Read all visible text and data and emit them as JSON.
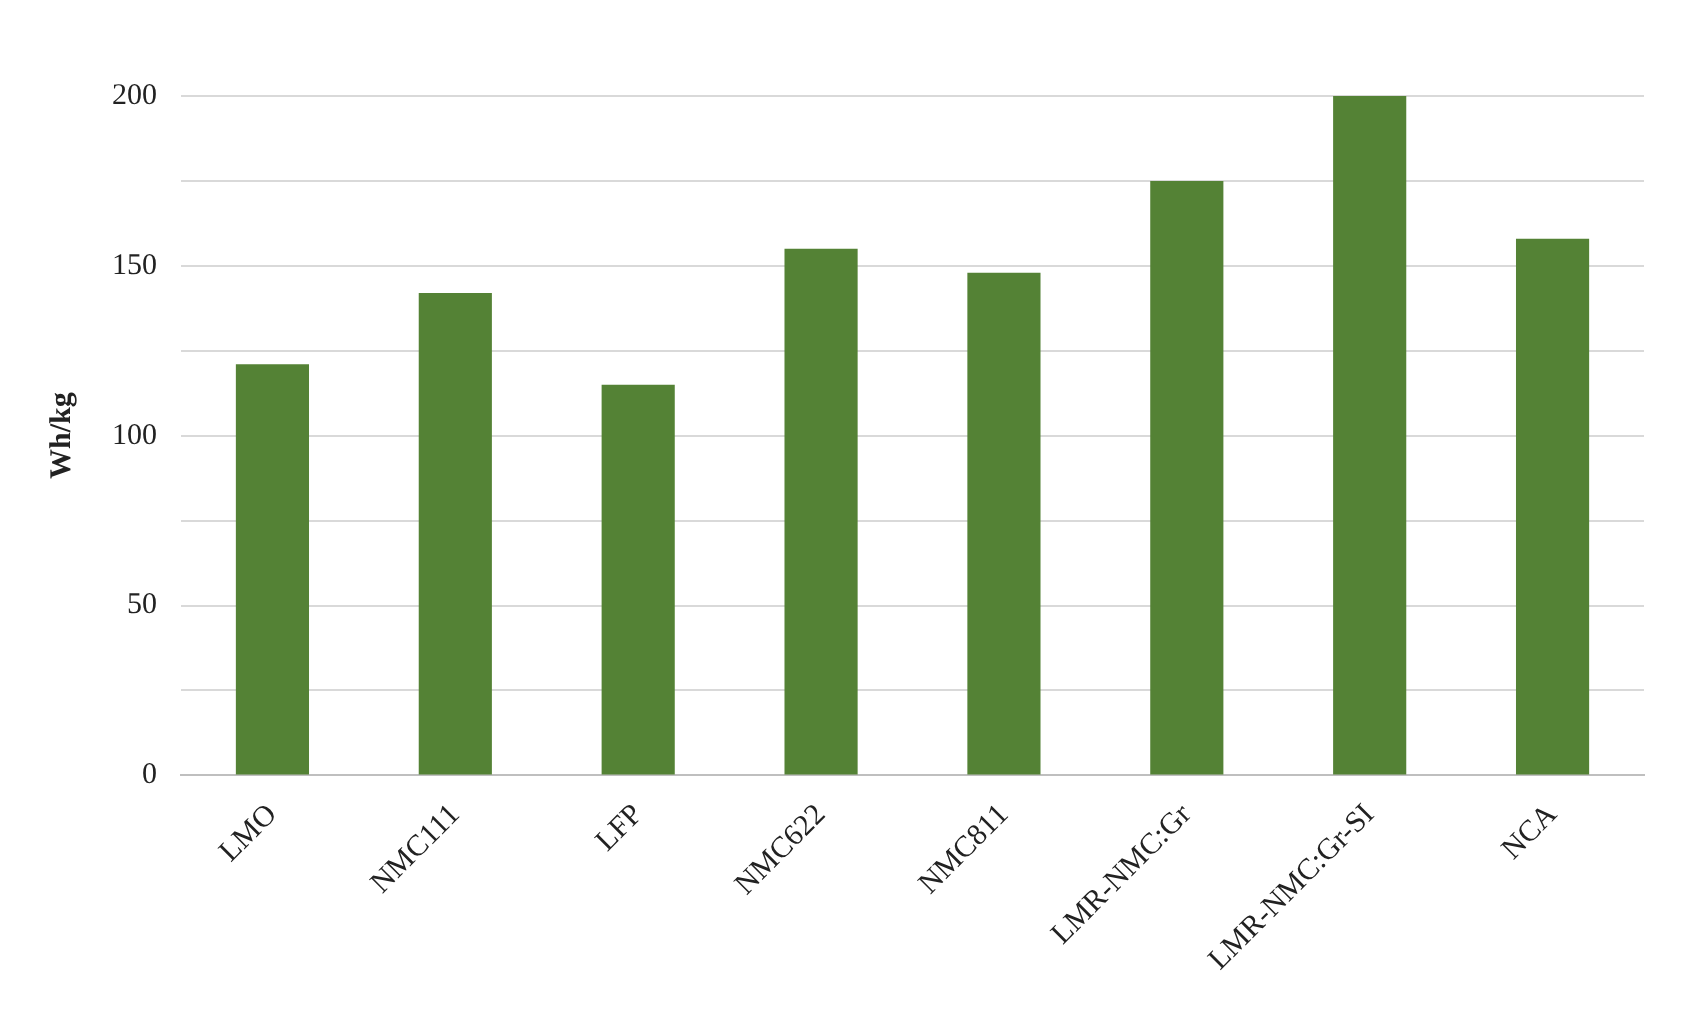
{
  "chart_data": {
    "type": "bar",
    "ylabel": "Wh/kg",
    "categories": [
      "LMO",
      "NMC111",
      "LFP",
      "NMC622",
      "NMC811",
      "LMR-NMC:Gr",
      "LMR-NMC:Gr-SI",
      "NCA"
    ],
    "values": [
      121,
      142,
      115,
      155,
      148,
      175,
      200,
      158
    ],
    "color": "#548235",
    "ylim": [
      0,
      200
    ],
    "yticks": [
      0,
      {
        "value": 25,
        "label": null
      },
      50,
      {
        "value": 75,
        "label": null
      },
      100,
      {
        "value": 125,
        "label": null
      },
      150,
      {
        "value": 175,
        "label": null
      },
      200
    ],
    "grid": "y",
    "legend": false
  }
}
